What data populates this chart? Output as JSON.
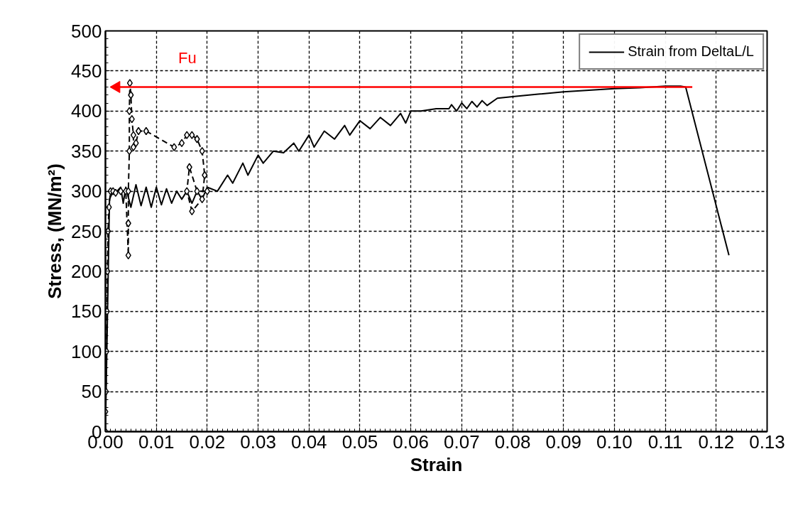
{
  "chart_data": {
    "type": "line",
    "xlabel": "Strain",
    "ylabel": "Stress, (MN/m²)",
    "xlim": [
      0,
      0.13
    ],
    "xticks": [
      {
        "value": 0,
        "label": "0.00"
      },
      {
        "value": 0.01,
        "label": "0.01"
      },
      {
        "value": 0.02,
        "label": "0.02"
      },
      {
        "value": 0.03,
        "label": "0.03"
      },
      {
        "value": 0.04,
        "label": "0.04"
      },
      {
        "value": 0.05,
        "label": "0.05"
      },
      {
        "value": 0.06,
        "label": "0.06"
      },
      {
        "value": 0.07,
        "label": "0.07"
      },
      {
        "value": 0.08,
        "label": "0.08"
      },
      {
        "value": 0.09,
        "label": "0.09"
      },
      {
        "value": 0.1,
        "label": "0.10"
      },
      {
        "value": 0.11,
        "label": "0.11"
      },
      {
        "value": 0.12,
        "label": "0.12"
      },
      {
        "value": 0.13,
        "label": "0.13"
      }
    ],
    "ylim": [
      0,
      500
    ],
    "yticks": [
      0,
      50,
      100,
      150,
      200,
      250,
      300,
      350,
      400,
      450,
      500
    ],
    "grid": true,
    "legend": "top right",
    "annotations": [
      "Fu"
    ],
    "series": [
      {
        "name": "Strain from DeltaL/L",
        "color": "#000000",
        "line_style": "solid",
        "x": [
          0,
          0.0008,
          0.0015,
          0.002,
          0.003,
          0.0035,
          0.004,
          0.005,
          0.006,
          0.007,
          0.008,
          0.009,
          0.01,
          0.011,
          0.012,
          0.013,
          0.014,
          0.015,
          0.016,
          0.017,
          0.018,
          0.019,
          0.02,
          0.022,
          0.024,
          0.025,
          0.027,
          0.028,
          0.03,
          0.031,
          0.033,
          0.035,
          0.037,
          0.038,
          0.04,
          0.041,
          0.043,
          0.045,
          0.047,
          0.048,
          0.05,
          0.052,
          0.054,
          0.056,
          0.058,
          0.059,
          0.06,
          0.062,
          0.065,
          0.0675,
          0.068,
          0.069,
          0.07,
          0.071,
          0.072,
          0.073,
          0.074,
          0.075,
          0.077,
          0.08,
          0.085,
          0.09,
          0.095,
          0.1,
          0.105,
          0.11,
          0.113,
          0.114,
          0.1225
        ],
        "values": [
          0,
          290,
          300,
          298,
          305,
          285,
          305,
          280,
          308,
          282,
          305,
          280,
          305,
          283,
          303,
          285,
          300,
          290,
          300,
          285,
          300,
          290,
          305,
          300,
          320,
          310,
          335,
          320,
          345,
          335,
          350,
          348,
          360,
          350,
          370,
          355,
          375,
          365,
          382,
          370,
          388,
          378,
          392,
          382,
          397,
          385,
          400,
          400,
          403,
          403,
          408,
          400,
          410,
          403,
          412,
          405,
          413,
          407,
          416,
          418,
          421,
          424,
          426,
          428,
          429,
          431,
          431,
          430,
          220
        ]
      },
      {
        "color": "#000000",
        "marker": "diamond",
        "line_style": "dashed",
        "x": [
          0,
          0,
          0.0001,
          0.0002,
          0.0003,
          0.0004,
          0.0005,
          0.0007,
          0.001,
          0.0015,
          0.002,
          0.003,
          0.004,
          0.0045,
          0.0045,
          0.0045,
          0.0047,
          0.0047,
          0.0048,
          0.005,
          0.0052,
          0.0055,
          0.0055,
          0.006,
          0.0065,
          0.008,
          0.0135,
          0.015,
          0.016,
          0.017,
          0.018,
          0.019,
          0.0195,
          0.019,
          0.017,
          0.016,
          0.0165,
          0.018,
          0.02
        ],
        "values": [
          0,
          25,
          50,
          100,
          150,
          200,
          250,
          280,
          300,
          300,
          298,
          300,
          300,
          220,
          260,
          300,
          350,
          400,
          435,
          420,
          390,
          370,
          355,
          360,
          375,
          375,
          355,
          360,
          370,
          370,
          365,
          350,
          320,
          290,
          275,
          300,
          330,
          300,
          300
        ]
      },
      {
        "color": "#ff0000",
        "line_style": "solid",
        "x": [
          0.1153,
          0.0022
        ],
        "values": [
          430,
          430
        ]
      }
    ]
  }
}
